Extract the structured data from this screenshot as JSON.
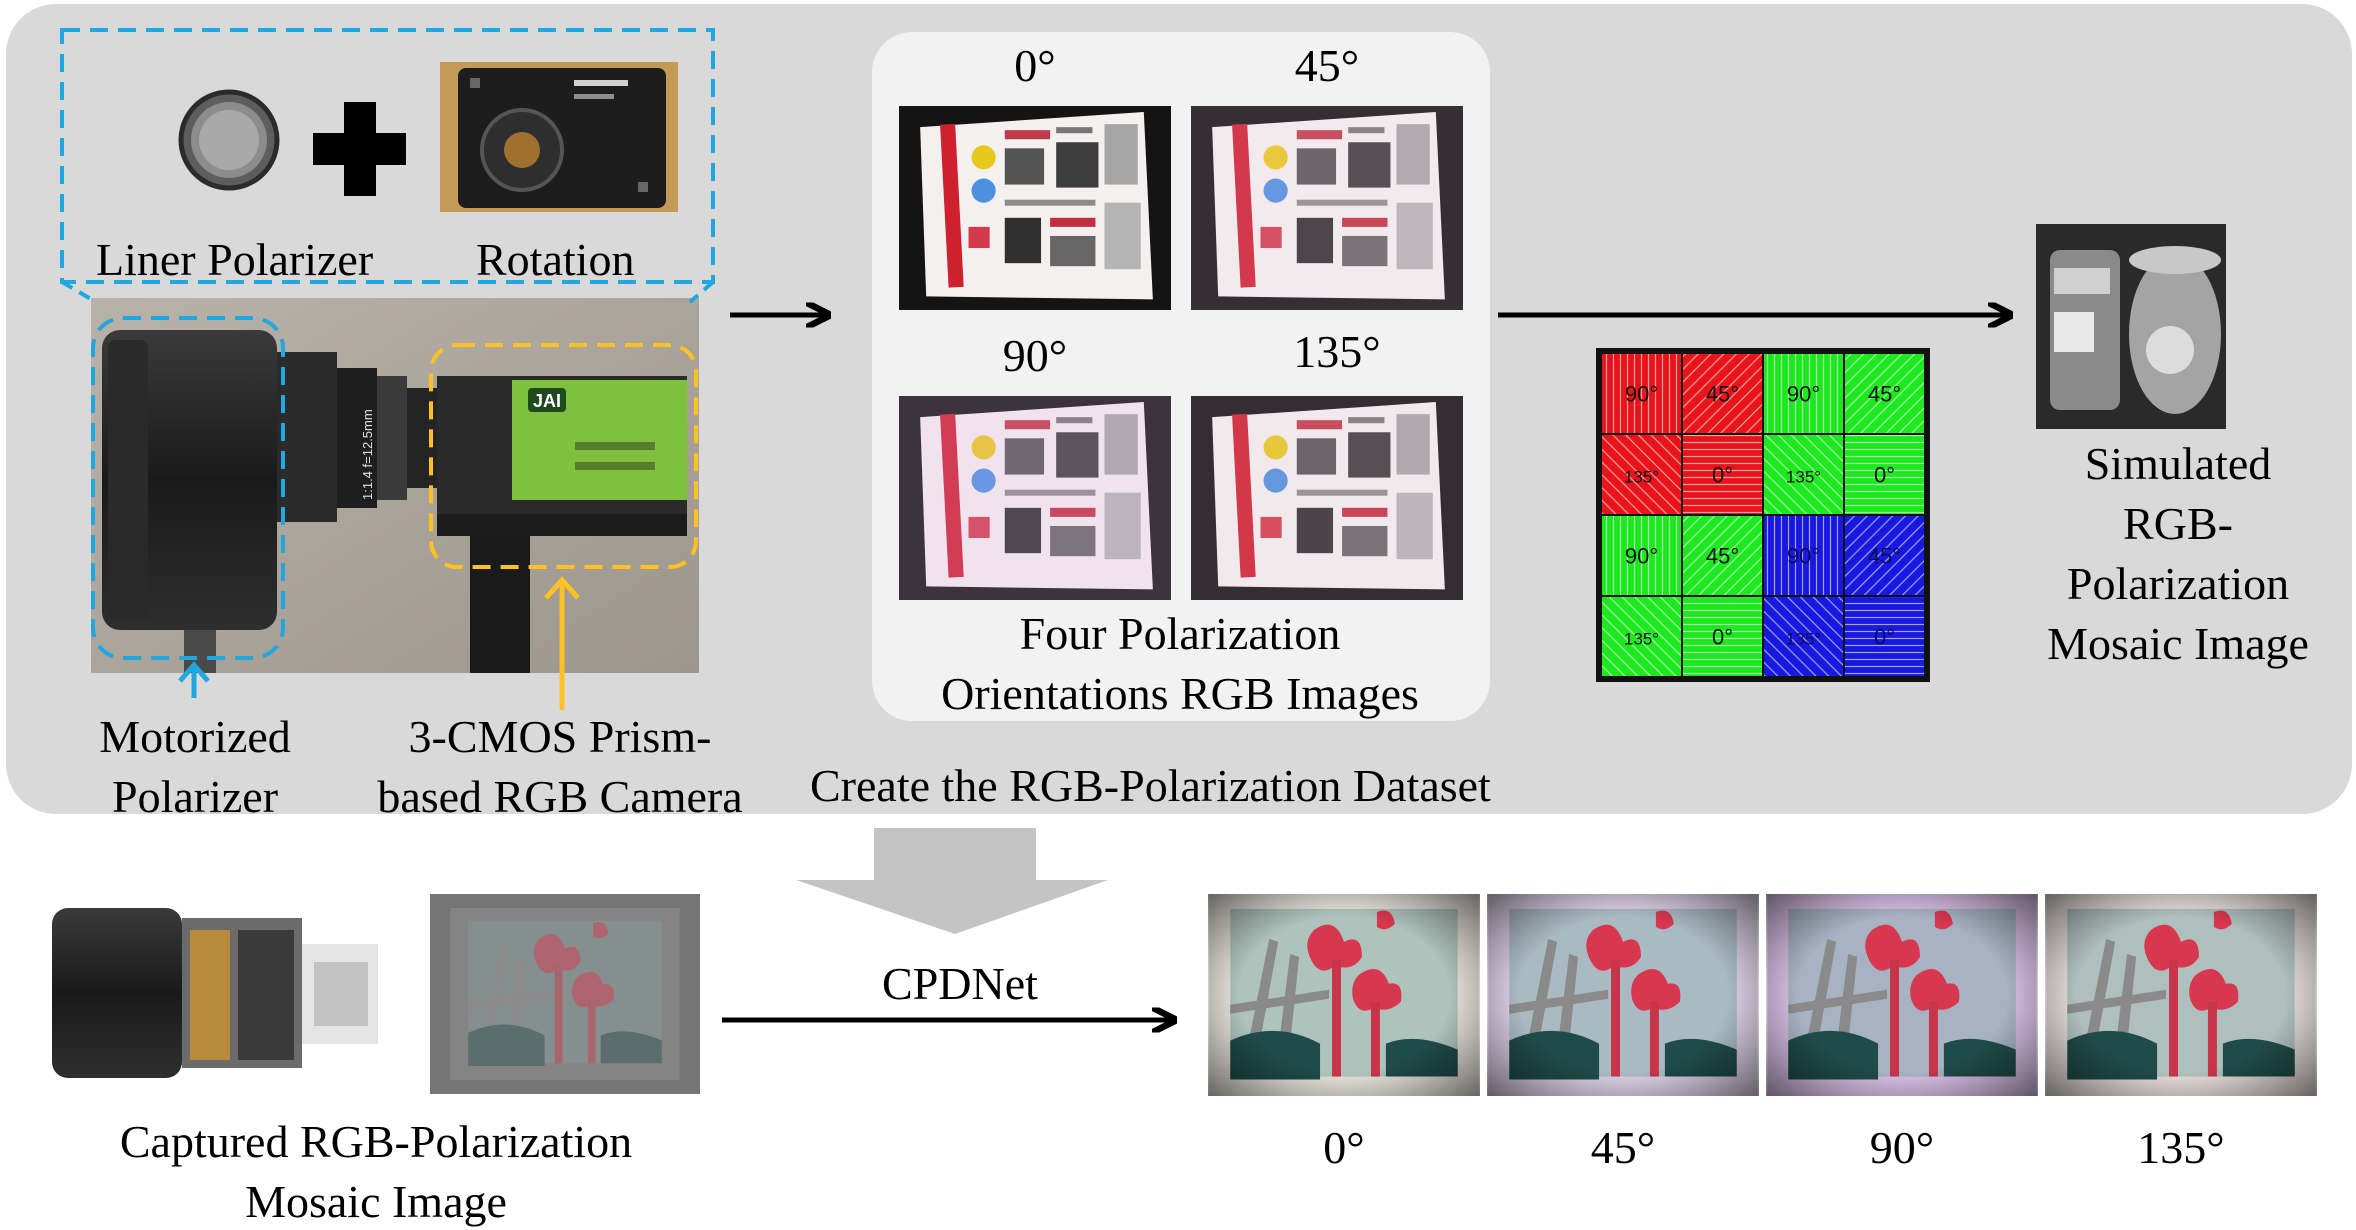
{
  "top_panel": {
    "inset": {
      "polarizer_label": "Liner Polarizer",
      "rotation_label": "Rotation"
    },
    "camera": {
      "motorized_label": [
        "Motorized",
        "Polarizer"
      ],
      "prism_label": [
        "3-CMOS Prism-",
        "based RGB Camera"
      ],
      "lens_text": "1:1.4 f=12.5mm",
      "brand_text": "JAI"
    },
    "orientations": {
      "angles": [
        "0°",
        "45°",
        "90°",
        "135°"
      ],
      "caption": [
        "Four Polarization",
        "Orientations RGB Images"
      ]
    },
    "mosaic_grid": {
      "colors": {
        "R": "#e8141a",
        "G": "#1ee820",
        "B": "#1818e0"
      },
      "cells": [
        [
          {
            "c": "R",
            "t": "90°"
          },
          {
            "c": "R",
            "t": "45°"
          },
          {
            "c": "G",
            "t": "90°"
          },
          {
            "c": "G",
            "t": "45°"
          }
        ],
        [
          {
            "c": "R",
            "t": "135°"
          },
          {
            "c": "R",
            "t": "0°"
          },
          {
            "c": "G",
            "t": "135°"
          },
          {
            "c": "G",
            "t": "0°"
          }
        ],
        [
          {
            "c": "G",
            "t": "90°"
          },
          {
            "c": "G",
            "t": "45°"
          },
          {
            "c": "B",
            "t": "90°"
          },
          {
            "c": "B",
            "t": "45°"
          }
        ],
        [
          {
            "c": "G",
            "t": "135°"
          },
          {
            "c": "G",
            "t": "0°"
          },
          {
            "c": "B",
            "t": "135°"
          },
          {
            "c": "B",
            "t": "0°"
          }
        ]
      ]
    },
    "simulated_caption": [
      "Simulated",
      "RGB-",
      "Polarization",
      "Mosaic Image"
    ],
    "dataset_caption": "Create the RGB-Polarization Dataset"
  },
  "bottom": {
    "captured_caption": [
      "Captured RGB-Polarization",
      "Mosaic Image"
    ],
    "network_label": "CPDNet",
    "output_angles": [
      "0°",
      "45°",
      "90°",
      "135°"
    ]
  },
  "style": {
    "panel_bg": "#d9d9d9",
    "inner_panel_bg": "#f2f2f2",
    "blue_dash": "#21a7e0",
    "yellow_dash": "#ffc222",
    "arrow_gray": "#c4c4c4"
  }
}
